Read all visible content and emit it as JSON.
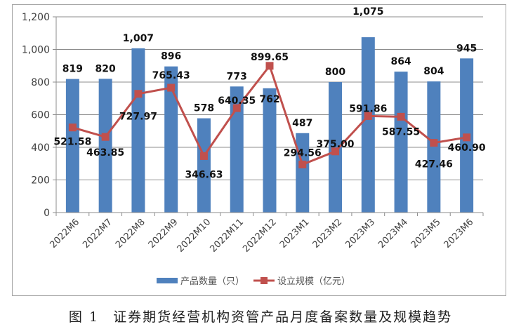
{
  "chart_data": {
    "type": "bar+line",
    "title": "",
    "caption_number": "图 1",
    "caption_text": "证券期货经营机构资管产品月度备案数量及规模趋势",
    "categories": [
      "2022M6",
      "2022M7",
      "2022M8",
      "2022M9",
      "2022M10",
      "2022M11",
      "2022M12",
      "2023M1",
      "2023M2",
      "2023M3",
      "2023M4",
      "2023M5",
      "2023M6"
    ],
    "series": [
      {
        "name": "产品数量（只）",
        "type": "bar",
        "color": "#4f81bd",
        "values": [
          819,
          820,
          1007,
          896,
          578,
          773,
          762,
          487,
          800,
          1075,
          864,
          804,
          945
        ],
        "labels": [
          "819",
          "820",
          "1,007",
          "896",
          "578",
          "773",
          "762",
          "487",
          "800",
          "1,075",
          "864",
          "804",
          "945"
        ]
      },
      {
        "name": "设立规模（亿元）",
        "type": "line",
        "color": "#c0504d",
        "marker": "square",
        "values": [
          521.58,
          463.85,
          727.97,
          765.43,
          346.63,
          640.35,
          899.65,
          294.56,
          375.0,
          591.86,
          587.55,
          427.46,
          460.9
        ],
        "labels": [
          "521.58",
          "463.85",
          "727.97",
          "765.43",
          "346.63",
          "640.35",
          "899.65",
          "294.56",
          "375.00",
          "591.86",
          "587.55",
          "427.46",
          "460.90"
        ]
      }
    ],
    "xlabel": "",
    "ylabel": "",
    "ylim": [
      0,
      1200
    ],
    "yticks": [
      0,
      200,
      400,
      600,
      800,
      1000,
      1200
    ],
    "ytick_labels": [
      "0",
      "200",
      "400",
      "600",
      "800",
      "1,000",
      "1,200"
    ],
    "grid": true,
    "legend_position": "bottom"
  },
  "legend": {
    "bar_label": "产品数量（只）",
    "line_label": "设立规模（亿元）"
  },
  "caption": {
    "number": "图 1",
    "text": "证券期货经营机构资管产品月度备案数量及规模趋势"
  }
}
